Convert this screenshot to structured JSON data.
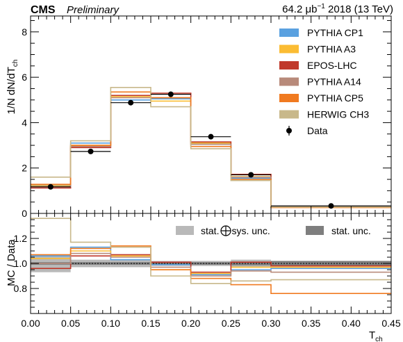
{
  "header": {
    "experiment": "CMS",
    "status": "Preliminary",
    "lumi_prefix": "64.2 μb",
    "lumi_exp": "−1",
    "lumi_suffix": " 2018 (13 TeV)"
  },
  "chart_data": [
    {
      "type": "histogram",
      "panel": "top",
      "ylabel_main": "1/N dN/dT",
      "ylabel_sub": "ch",
      "ylim": [
        0,
        8.7
      ],
      "yticks": [
        0,
        2,
        4,
        6,
        8
      ],
      "bin_edges": [
        0.0,
        0.05,
        0.1,
        0.15,
        0.2,
        0.25,
        0.3,
        0.45
      ],
      "series": [
        {
          "name": "PYTHIA CP1",
          "color": "#5aa1e0",
          "values": [
            1.25,
            3.1,
            5.0,
            5.05,
            3.05,
            1.55,
            0.3
          ]
        },
        {
          "name": "PYTHIA A3",
          "color": "#fbbc33",
          "values": [
            1.22,
            3.0,
            5.15,
            4.95,
            3.1,
            1.62,
            0.28
          ]
        },
        {
          "name": "EPOS-LHC",
          "color": "#c0392b",
          "values": [
            1.12,
            2.9,
            5.2,
            5.3,
            3.15,
            1.72,
            0.3
          ]
        },
        {
          "name": "PYTHIA A14",
          "color": "#b88a7a",
          "values": [
            1.18,
            2.95,
            5.1,
            5.1,
            3.05,
            1.6,
            0.3
          ]
        },
        {
          "name": "PYTHIA CP5",
          "color": "#f07a20",
          "values": [
            1.28,
            3.0,
            5.35,
            5.1,
            2.95,
            1.5,
            0.26
          ]
        },
        {
          "name": "HERWIG CH3",
          "color": "#c8b88a",
          "values": [
            1.6,
            3.2,
            5.55,
            4.7,
            2.85,
            1.45,
            0.28
          ]
        }
      ],
      "data": {
        "name": "Data",
        "x": [
          0.025,
          0.075,
          0.125,
          0.175,
          0.225,
          0.275,
          0.375
        ],
        "y": [
          1.17,
          2.73,
          4.88,
          5.25,
          3.38,
          1.7,
          0.33
        ],
        "xerr": [
          0.025,
          0.025,
          0.025,
          0.025,
          0.025,
          0.025,
          0.075
        ],
        "yerr": [
          0.05,
          0.08,
          0.1,
          0.12,
          0.08,
          0.05,
          0.02
        ]
      }
    },
    {
      "type": "histogram",
      "panel": "ratio",
      "ylabel": "MC / Data",
      "xlabel_main": "T",
      "xlabel_sub": "ch",
      "ylim": [
        0.6,
        1.4
      ],
      "yticks": [
        0.8,
        1.0,
        1.2
      ],
      "ytick_labels": [
        "0.8",
        "1.0",
        "1.2"
      ],
      "xlim": [
        0,
        0.45
      ],
      "xticks": [
        0.0,
        0.05,
        0.1,
        0.15,
        0.2,
        0.25,
        0.3,
        0.35,
        0.4,
        0.45
      ],
      "xtick_labels": [
        "0.00",
        "0.05",
        "0.10",
        "0.15",
        "0.20",
        "0.25",
        "0.30",
        "0.35",
        "0.40",
        "0.45"
      ],
      "bin_edges": [
        0.0,
        0.05,
        0.1,
        0.15,
        0.2,
        0.25,
        0.3,
        0.45
      ],
      "series": [
        {
          "name": "PYTHIA CP1",
          "color": "#5aa1e0",
          "values": [
            1.06,
            1.13,
            1.03,
            0.99,
            0.91,
            0.95,
            0.96
          ]
        },
        {
          "name": "PYTHIA A3",
          "color": "#fbbc33",
          "values": [
            1.04,
            1.1,
            1.06,
            0.95,
            0.92,
            0.97,
            0.97
          ]
        },
        {
          "name": "EPOS-LHC",
          "color": "#c0392b",
          "values": [
            0.96,
            1.06,
            1.07,
            1.01,
            0.93,
            1.01,
            0.98
          ]
        },
        {
          "name": "PYTHIA A14",
          "color": "#b88a7a",
          "values": [
            1.0,
            1.08,
            1.05,
            0.97,
            0.9,
            0.94,
            0.93
          ]
        },
        {
          "name": "PYTHIA CP5",
          "color": "#f07a20",
          "values": [
            1.07,
            1.12,
            1.14,
            0.95,
            0.88,
            0.83,
            0.76
          ]
        },
        {
          "name": "HERWIG CH3",
          "color": "#c8b88a",
          "values": [
            1.36,
            1.17,
            1.13,
            0.9,
            0.84,
            0.86,
            0.87
          ]
        }
      ],
      "bands": {
        "stat_sys": {
          "label": "stat.",
          "label_after": "sys. unc.",
          "color": "#b9b9b9",
          "half_width": [
            0.07,
            0.03,
            0.03,
            0.02,
            0.02,
            0.03,
            0.02
          ]
        },
        "stat": {
          "label": "stat. unc.",
          "color": "#7e7e7e",
          "half_width": [
            0.01,
            0.01,
            0.01,
            0.01,
            0.01,
            0.015,
            0.02
          ]
        }
      }
    }
  ],
  "legend": {
    "placement": "top-right",
    "entries": [
      {
        "label": "PYTHIA CP1",
        "color": "#5aa1e0"
      },
      {
        "label": "PYTHIA A3",
        "color": "#fbbc33"
      },
      {
        "label": "EPOS-LHC",
        "color": "#c0392b"
      },
      {
        "label": "PYTHIA A14",
        "color": "#b88a7a"
      },
      {
        "label": "PYTHIA CP5",
        "color": "#f07a20"
      },
      {
        "label": "HERWIG CH3",
        "color": "#c8b88a"
      }
    ],
    "data_label": "Data"
  }
}
